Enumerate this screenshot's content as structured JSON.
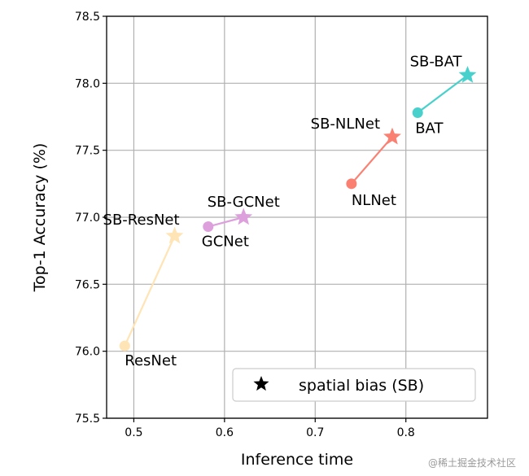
{
  "chart_data": {
    "type": "scatter",
    "title": "",
    "xlabel": "Inference time",
    "ylabel": "Top-1 Accuracy (%)",
    "xlim": [
      0.47,
      0.89
    ],
    "ylim": [
      75.5,
      78.5
    ],
    "xticks": [
      0.5,
      0.6,
      0.7,
      0.8
    ],
    "xtick_labels": [
      "0.5",
      "0.6",
      "0.7",
      "0.8"
    ],
    "yticks": [
      75.5,
      76.0,
      76.5,
      77.0,
      77.5,
      78.0,
      78.5
    ],
    "ytick_labels": [
      "75.5",
      "76.0",
      "76.5",
      "77.0",
      "77.5",
      "78.0",
      "78.5"
    ],
    "grid": true,
    "series": [
      {
        "name": "ResNet",
        "color": "#ffe4b5",
        "base": {
          "label": "ResNet",
          "x": 0.49,
          "y": 76.04
        },
        "sb": {
          "label": "SB-ResNet",
          "x": 0.545,
          "y": 76.86
        }
      },
      {
        "name": "GCNet",
        "color": "#dda0dd",
        "base": {
          "label": "GCNet",
          "x": 0.582,
          "y": 76.93
        },
        "sb": {
          "label": "SB-GCNet",
          "x": 0.621,
          "y": 77.0
        }
      },
      {
        "name": "NLNet",
        "color": "#fa8072",
        "base": {
          "label": "NLNet",
          "x": 0.74,
          "y": 77.25
        },
        "sb": {
          "label": "SB-NLNet",
          "x": 0.785,
          "y": 77.6
        }
      },
      {
        "name": "BAT",
        "color": "#48d1cc",
        "base": {
          "label": "BAT",
          "x": 0.813,
          "y": 77.78
        },
        "sb": {
          "label": "SB-BAT",
          "x": 0.868,
          "y": 78.06
        }
      }
    ],
    "legend": {
      "position": "lower-right",
      "entries": [
        {
          "marker": "star",
          "label": "spatial bias (SB)"
        }
      ]
    }
  },
  "watermark": "@稀土掘金技术社区"
}
